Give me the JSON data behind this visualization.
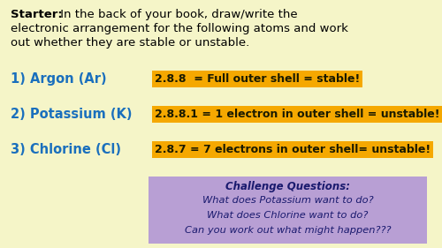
{
  "bg_color": "#f5f5c8",
  "title_bold": "Starter:",
  "title_rest": " In the back of your book, draw/write the\nelectronic arrangement for the following atoms and work\nout whether they are stable or unstable.",
  "items": [
    {
      "label": "1) Argon (Ar)",
      "answer": "2.8.8  = Full outer shell = stable!"
    },
    {
      "label": "2) Potassium (K)",
      "answer": "2.8.8.1 = 1 electron in outer shell = unstable!"
    },
    {
      "label": "3) Chlorine (Cl)",
      "answer": "2.8.7 = 7 electrons in outer shell= unstable!"
    }
  ],
  "label_color": "#1a6fbd",
  "answer_bg": "#f5a800",
  "answer_fg": "#1a1a00",
  "challenge_bg": "#b89fd4",
  "challenge_title": "Challenge Questions:",
  "challenge_lines": [
    "What does Potassium want to do?",
    "What does Chlorine want to do?",
    "Can you work out what might happen???"
  ],
  "challenge_fg": "#1a1a6e",
  "fig_width": 5.0,
  "fig_height": 2.81,
  "dpi": 100
}
